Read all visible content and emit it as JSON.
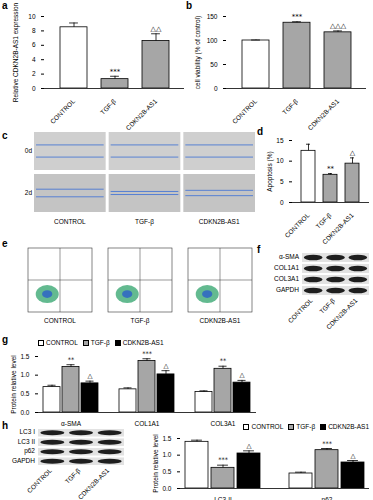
{
  "chart_data": [
    {
      "panel": "a",
      "type": "bar",
      "y_label": "Relative CDKN2B-AS1 expression",
      "categories": [
        "CONTROL",
        "TGF-β",
        "CDKN2B-AS1"
      ],
      "values": [
        8.5,
        1.3,
        6.6
      ],
      "errors": [
        0.6,
        0.4,
        1.0
      ],
      "annotations": [
        null,
        "***",
        "△△"
      ],
      "colors": [
        "#ffffff",
        "#a6a6a6",
        "#a6a6a6"
      ],
      "ylim": [
        0,
        10
      ],
      "yticks": [
        0,
        2,
        4,
        6,
        8,
        10
      ]
    },
    {
      "panel": "b",
      "type": "bar",
      "y_label": "cell viability (% of control)",
      "categories": [
        "CONTROL",
        "TGF-β",
        "CDKN2B-AS1"
      ],
      "values": [
        100,
        137,
        117
      ],
      "errors": [
        1,
        2,
        3
      ],
      "annotations": [
        null,
        "***",
        "△△△"
      ],
      "colors": [
        "#ffffff",
        "#a6a6a6",
        "#a6a6a6"
      ],
      "ylim": [
        0,
        150
      ],
      "yticks": [
        0,
        50,
        100,
        150
      ]
    },
    {
      "panel": "d",
      "type": "bar",
      "y_label": "Apoptosis (%)",
      "categories": [
        "CONTROL",
        "TGF-β",
        "CDKN2B-AS1"
      ],
      "values": [
        12.5,
        6.7,
        9.4
      ],
      "errors": [
        1.6,
        0.3,
        1.4
      ],
      "annotations": [
        null,
        "**",
        "△"
      ],
      "colors": [
        "#ffffff",
        "#a6a6a6",
        "#a6a6a6"
      ],
      "ylim": [
        0,
        15
      ],
      "yticks": [
        0,
        5,
        10,
        15
      ]
    },
    {
      "panel": "g",
      "type": "bar",
      "y_label": "Protein relative level",
      "categories": [
        "α-SMA",
        "COL1A1",
        "COL3A1"
      ],
      "series": [
        {
          "name": "CONTROL",
          "color": "#ffffff",
          "values": [
            0.68,
            0.62,
            0.55
          ],
          "errors": [
            0.05,
            0.04,
            0.03
          ],
          "annotations": [
            null,
            null,
            null
          ]
        },
        {
          "name": "TGF-β",
          "color": "#a6a6a6",
          "values": [
            1.22,
            1.38,
            1.17
          ],
          "errors": [
            0.06,
            0.06,
            0.07
          ],
          "annotations": [
            "**",
            "***",
            "**"
          ]
        },
        {
          "name": "CDKN2B-AS1",
          "color": "#000000",
          "values": [
            0.78,
            1.02,
            0.8
          ],
          "errors": [
            0.06,
            0.1,
            0.06
          ],
          "annotations": [
            "△",
            "△",
            "△"
          ]
        }
      ],
      "legend": "top-left",
      "ylim": [
        0,
        1.5
      ],
      "yticks": [
        {
          "value": 0,
          "label": "0.0"
        },
        {
          "value": 0.5,
          "label": "0.5"
        },
        {
          "value": 1,
          "label": "1.0"
        },
        {
          "value": 1.5,
          "label": "1.5"
        }
      ]
    },
    {
      "type": "bar",
      "y_label": "Protein relative level",
      "categories": [
        "LC3-II",
        "p62"
      ],
      "series": [
        {
          "name": "CONTROL",
          "color": "#ffffff",
          "values": [
            1.4,
            0.45
          ],
          "errors": [
            0.05,
            0.04
          ],
          "annotations": [
            null,
            null
          ]
        },
        {
          "name": "TGF-β",
          "color": "#a6a6a6",
          "values": [
            0.62,
            1.15
          ],
          "errors": [
            0.08,
            0.05
          ],
          "annotations": [
            "***",
            "***"
          ]
        },
        {
          "name": "CDKN2B-AS1",
          "color": "#000000",
          "values": [
            1.05,
            0.78
          ],
          "errors": [
            0.08,
            0.06
          ],
          "annotations": [
            "△",
            "△"
          ]
        }
      ],
      "legend": "top-right",
      "ylim": [
        0,
        1.5
      ],
      "yticks": [
        {
          "value": 0,
          "label": "0.0"
        },
        {
          "value": 0.5,
          "label": "0.5"
        },
        {
          "value": 1,
          "label": "1.0"
        },
        {
          "value": 1.5,
          "label": "1.5"
        }
      ]
    }
  ],
  "images": [
    {
      "panel": "c",
      "type": "scratch-assay",
      "rows": [
        "0d",
        "2d"
      ],
      "columns": [
        "CONTROL",
        "TGF-β",
        "CDKN2B-AS1"
      ]
    },
    {
      "panel": "e",
      "type": "flow-cytometry",
      "columns": [
        "CONTROL",
        "TGF-β",
        "CDKN2B-AS1"
      ]
    },
    {
      "panel": "f",
      "type": "western-blot",
      "rows": [
        "α-SMA",
        "COL1A1",
        "COL3A1",
        "GAPDH"
      ],
      "columns": [
        "CONTROL",
        "TGF-β",
        "CDKN2B-AS1"
      ]
    },
    {
      "panel": "h",
      "type": "western-blot",
      "rows": [
        "LC3 I",
        "LC3 II",
        "p62",
        "GAPDH"
      ],
      "columns": [
        "CONTROL",
        "TGF-β",
        "CDKN2B-AS1"
      ]
    }
  ]
}
